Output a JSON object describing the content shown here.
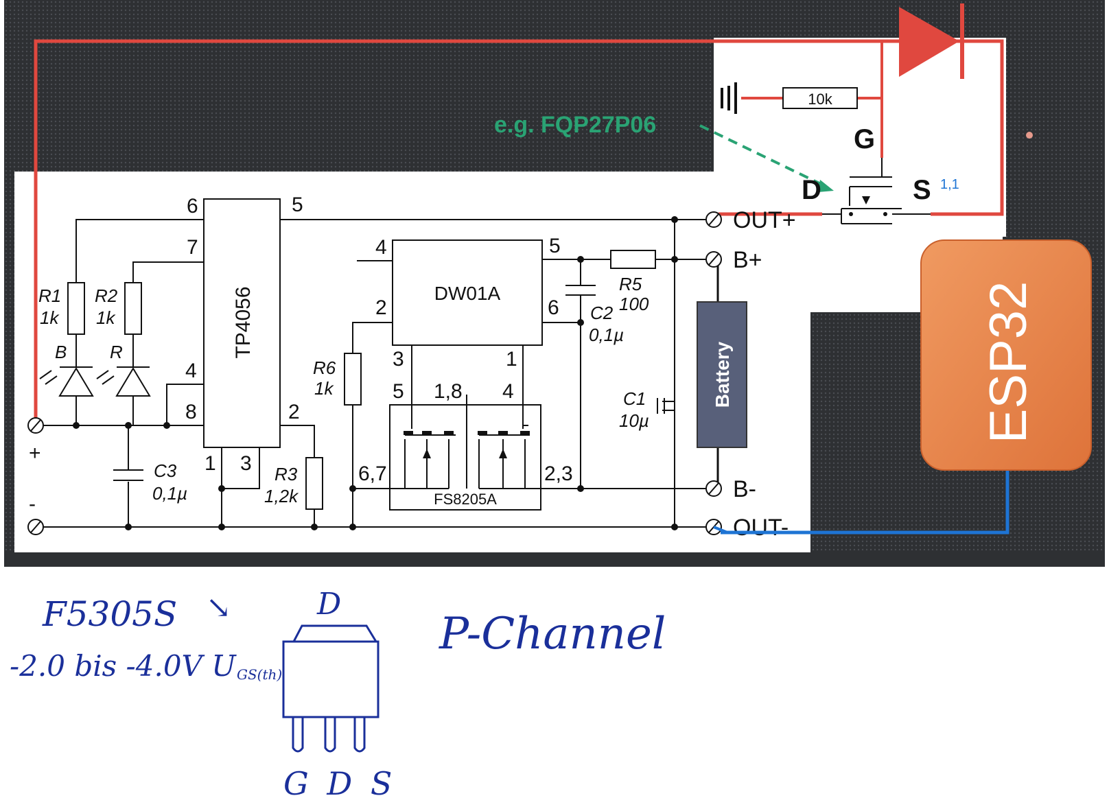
{
  "annotation": {
    "mosfet_example": "e.g. FQP27P06",
    "resistor_10k": "10k",
    "small_mark": "1,1"
  },
  "mosfet_pins": {
    "g": "G",
    "d": "D",
    "s": "S"
  },
  "ic": {
    "tp4056": {
      "name": "TP4056",
      "pins": {
        "p6": "6",
        "p5": "5",
        "p7": "7",
        "p4": "4",
        "p8": "8",
        "p2": "2",
        "p1": "1",
        "p3": "3"
      }
    },
    "dw01a": {
      "name": "DW01A",
      "pins": {
        "p4": "4",
        "p5": "5",
        "p2": "2",
        "p6": "6",
        "p3": "3",
        "p1": "1"
      }
    },
    "fs8205a": {
      "name": "FS8205A",
      "pins": {
        "p5": "5",
        "p18": "1,8",
        "p4": "4",
        "p67": "6,7",
        "p23": "2,3"
      }
    }
  },
  "components": {
    "r1": {
      "name": "R1",
      "value": "1k"
    },
    "r2": {
      "name": "R2",
      "value": "1k"
    },
    "led_b": "B",
    "led_r": "R",
    "c3": {
      "name": "C3",
      "value": "0,1µ"
    },
    "r3": {
      "name": "R3",
      "value": "1,2k"
    },
    "r6": {
      "name": "R6",
      "value": "1k"
    },
    "r5": {
      "name": "R5",
      "value": "100"
    },
    "c2": {
      "name": "C2",
      "value": "0,1µ"
    },
    "c1": {
      "name": "C1",
      "value": "10µ"
    },
    "battery": "Battery"
  },
  "terminals": {
    "plus": "+",
    "minus": "-",
    "out_plus": "OUT+",
    "b_plus": "B+",
    "b_minus": "B-",
    "out_minus": "OUT-"
  },
  "module": {
    "label": "ESP32"
  },
  "handwritten": {
    "part": "F5305S",
    "arrow": "↘",
    "vgs": "-2.0 bis -4.0V U",
    "vgs_sub": "GS(th)",
    "pkg_d": "D",
    "pkg_pins": "G D S",
    "type": "P-Channel"
  },
  "colors": {
    "wire_red": "#e0483f",
    "wire_blue": "#1e74d4",
    "annotation_green": "#2aa374",
    "esp_orange": "#e8834b",
    "battery_fill": "#58607a",
    "ink_blue": "#1a2f9a"
  }
}
